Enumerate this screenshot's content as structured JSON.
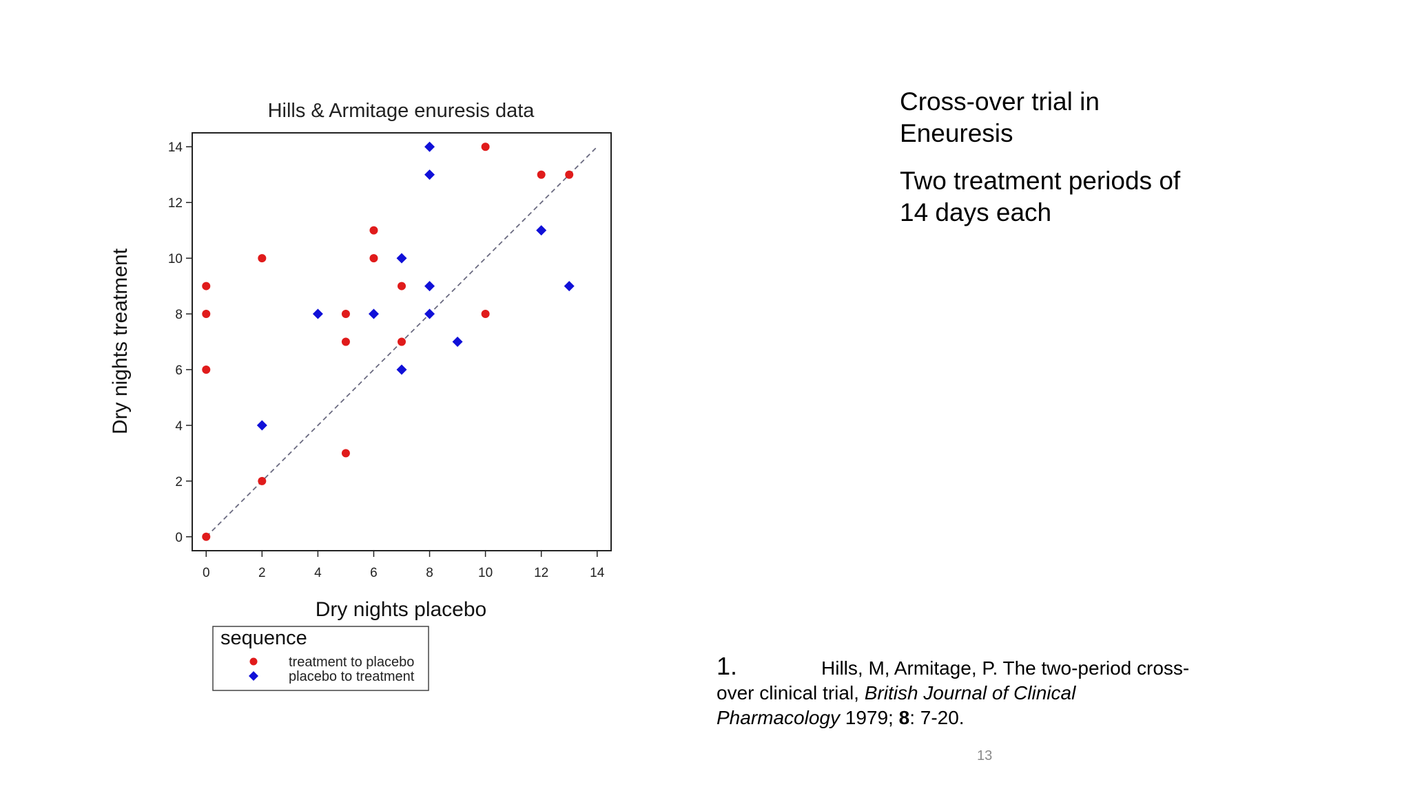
{
  "slide": {
    "heading_1": "Cross-over trial in\nEneuresis",
    "heading_2": "Two treatment periods of\n14 days each",
    "page_number": "13"
  },
  "reference": {
    "number": "1.",
    "authors": "Hills, M, Armitage, P. The two-period cross-over clinical trial, ",
    "journal": "British Journal of Clinical Pharmacology",
    "year": " 1979; ",
    "volume": "8",
    "pages": ": 7-20."
  },
  "chart_data": {
    "type": "scatter",
    "title": "Hills & Armitage enuresis data",
    "xlabel": "Dry nights placebo",
    "ylabel": "Dry nights treatment",
    "xlim": [
      -0.5,
      14.5
    ],
    "ylim": [
      -0.5,
      14.5
    ],
    "xticks": [
      0,
      2,
      4,
      6,
      8,
      10,
      12,
      14
    ],
    "yticks": [
      0,
      2,
      4,
      6,
      8,
      10,
      12,
      14
    ],
    "grid": false,
    "reference_line": {
      "from": [
        0,
        0
      ],
      "to": [
        14,
        14
      ],
      "style": "dashed"
    },
    "legend": {
      "title": "sequence",
      "placement": "below-left"
    },
    "series": [
      {
        "name": "treatment to placebo",
        "color": "#e01b1b",
        "marker": "circle",
        "points": [
          [
            0,
            0
          ],
          [
            0,
            6
          ],
          [
            0,
            8
          ],
          [
            0,
            9
          ],
          [
            2,
            2
          ],
          [
            2,
            10
          ],
          [
            5,
            3
          ],
          [
            5,
            7
          ],
          [
            5,
            8
          ],
          [
            6,
            10
          ],
          [
            6,
            11
          ],
          [
            7,
            7
          ],
          [
            7,
            9
          ],
          [
            10,
            8
          ],
          [
            10,
            14
          ],
          [
            12,
            13
          ],
          [
            13,
            13
          ]
        ]
      },
      {
        "name": "placebo to treatment",
        "color": "#1010d8",
        "marker": "diamond",
        "points": [
          [
            2,
            4
          ],
          [
            4,
            8
          ],
          [
            6,
            8
          ],
          [
            7,
            6
          ],
          [
            7,
            10
          ],
          [
            8,
            8
          ],
          [
            8,
            9
          ],
          [
            8,
            13
          ],
          [
            8,
            14
          ],
          [
            9,
            7
          ],
          [
            12,
            11
          ],
          [
            13,
            9
          ]
        ]
      }
    ]
  }
}
